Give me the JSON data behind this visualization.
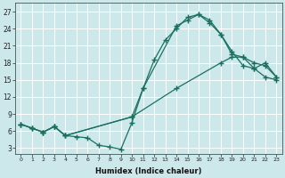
{
  "xlabel": "Humidex (Indice chaleur)",
  "bg_color": "#cce8ea",
  "grid_color": "#b0d0d4",
  "line_color": "#1a7060",
  "xlim": [
    -0.5,
    23.5
  ],
  "ylim": [
    2,
    28.5
  ],
  "xticks": [
    0,
    1,
    2,
    3,
    4,
    5,
    6,
    7,
    8,
    9,
    10,
    11,
    12,
    13,
    14,
    15,
    16,
    17,
    18,
    19,
    20,
    21,
    22,
    23
  ],
  "yticks": [
    3,
    6,
    9,
    12,
    15,
    18,
    21,
    24,
    27
  ],
  "line1": [
    [
      0,
      7.2
    ],
    [
      1,
      6.5
    ],
    [
      2,
      5.8
    ],
    [
      3,
      6.8
    ],
    [
      4,
      5.2
    ],
    [
      5,
      5.0
    ],
    [
      6,
      4.8
    ],
    [
      7,
      3.5
    ],
    [
      8,
      3.2
    ],
    [
      9,
      2.8
    ],
    [
      10,
      7.5
    ],
    [
      11,
      13.5
    ],
    [
      12,
      18.5
    ],
    [
      13,
      22
    ],
    [
      14,
      24
    ],
    [
      15,
      26
    ],
    [
      16,
      26.5
    ],
    [
      17,
      25.5
    ],
    [
      18,
      23
    ],
    [
      19,
      20
    ],
    [
      20,
      17.5
    ],
    [
      21,
      17
    ],
    [
      22,
      15.5
    ],
    [
      23,
      15
    ]
  ],
  "line2": [
    [
      0,
      7.2
    ],
    [
      1,
      6.5
    ],
    [
      2,
      5.8
    ],
    [
      3,
      6.8
    ],
    [
      4,
      5.2
    ],
    [
      10,
      8.5
    ],
    [
      11,
      13.5
    ],
    [
      14,
      24.5
    ],
    [
      15,
      25.5
    ],
    [
      16,
      26.5
    ],
    [
      17,
      25
    ],
    [
      18,
      23
    ],
    [
      19,
      19.5
    ],
    [
      20,
      19
    ],
    [
      21,
      17
    ],
    [
      22,
      18
    ],
    [
      23,
      15.5
    ]
  ],
  "line3": [
    [
      0,
      7.2
    ],
    [
      1,
      6.5
    ],
    [
      2,
      5.8
    ],
    [
      3,
      6.8
    ],
    [
      4,
      5.2
    ],
    [
      10,
      8.5
    ],
    [
      14,
      13.5
    ],
    [
      18,
      18
    ],
    [
      19,
      19
    ],
    [
      20,
      19
    ],
    [
      21,
      18
    ],
    [
      22,
      17.5
    ],
    [
      23,
      15.5
    ]
  ]
}
